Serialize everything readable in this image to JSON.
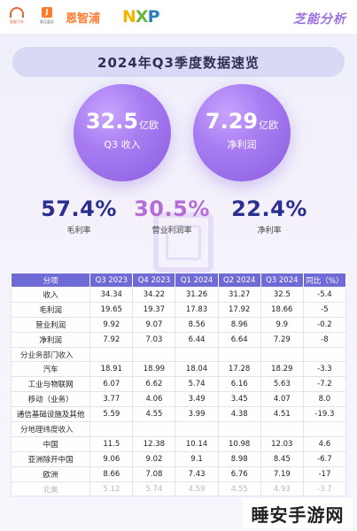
{
  "logos": {
    "zhineng": "智能汽车",
    "junzheng": "君正盈芯",
    "enzhipu": "恩智浦",
    "nxp_n": "N",
    "nxp_x": "X",
    "nxp_p": "P"
  },
  "brand": "芝能分析",
  "title": "2024年Q3季度数据速览",
  "revenue": {
    "value": "32.5",
    "unit": "亿欧",
    "label": "Q3 收入"
  },
  "net_profit": {
    "value": "7.29",
    "unit": "亿欧",
    "label": "净利润"
  },
  "kpis": [
    {
      "value": "57.4%",
      "label": "毛利率"
    },
    {
      "value": "30.5%",
      "label": "营业利润率"
    },
    {
      "value": "22.4%",
      "label": "净利率"
    }
  ],
  "table": {
    "headers": [
      "分项",
      "Q3 2023",
      "Q4 2023",
      "Q1 2024",
      "Q2 2024",
      "Q3 2024",
      "同比（%）"
    ],
    "rows": [
      [
        "收入",
        "34.34",
        "34.22",
        "31.26",
        "31.27",
        "32.5",
        "-5.4"
      ],
      [
        "毛利润",
        "19.65",
        "19.37",
        "17.83",
        "17.92",
        "18.66",
        "-5"
      ],
      [
        "营业利润",
        "9.92",
        "9.07",
        "8.56",
        "8.96",
        "9.9",
        "-0.2"
      ],
      [
        "净利润",
        "7.92",
        "7.03",
        "6.44",
        "6.64",
        "7.29",
        "-8"
      ],
      [
        "分业务部门收入",
        "",
        "",
        "",
        "",
        "",
        ""
      ],
      [
        "汽车",
        "18.91",
        "18.99",
        "18.04",
        "17.28",
        "18.29",
        "-3.3"
      ],
      [
        "工业与物联网",
        "6.07",
        "6.62",
        "5.74",
        "6.16",
        "5.63",
        "-7.2"
      ],
      [
        "移动（业务）",
        "3.77",
        "4.06",
        "3.49",
        "3.45",
        "4.07",
        "8.0"
      ],
      [
        "通信基础设施及其他",
        "5.59",
        "4.55",
        "3.99",
        "4.38",
        "4.51",
        "-19.3"
      ],
      [
        "分地理纬度收入",
        "",
        "",
        "",
        "",
        "",
        ""
      ],
      [
        "中国",
        "11.5",
        "12.38",
        "10.14",
        "10.98",
        "12.03",
        "4.6"
      ],
      [
        "亚洲除开中国",
        "9.06",
        "9.02",
        "9.1",
        "8.98",
        "8.45",
        "-6.7"
      ],
      [
        "欧洲",
        "8.66",
        "7.08",
        "7.43",
        "6.76",
        "7.19",
        "-17"
      ],
      [
        "北美",
        "5.12",
        "5.74",
        "4.59",
        "4.55",
        "4.93",
        "-3.7"
      ]
    ]
  },
  "watermark": "睡安手游网"
}
